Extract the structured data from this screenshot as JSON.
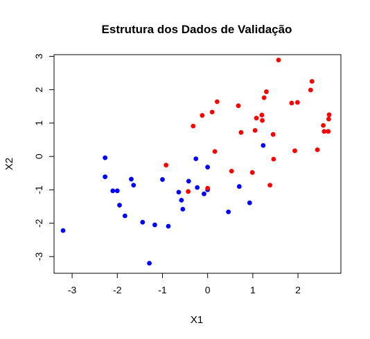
{
  "chart_data": {
    "type": "scatter",
    "title": "Estrutura dos Dados de Validação",
    "xlabel": "X1",
    "ylabel": "X2",
    "xlim": [
      -3.4,
      2.95
    ],
    "ylim": [
      -3.5,
      3.05
    ],
    "xticks": [
      -3,
      -2,
      -1,
      0,
      1,
      2
    ],
    "yticks": [
      -3,
      -2,
      -1,
      0,
      1,
      2,
      3
    ],
    "grid": false,
    "legend": "none",
    "series": [
      {
        "color": "#0000ff",
        "points": [
          [
            -3.2,
            -2.22
          ],
          [
            -2.27,
            -0.04
          ],
          [
            -2.27,
            -0.61
          ],
          [
            -2.1,
            -1.03
          ],
          [
            -2.0,
            -1.03
          ],
          [
            -1.95,
            -1.46
          ],
          [
            -1.83,
            -1.78
          ],
          [
            -1.69,
            -0.68
          ],
          [
            -1.64,
            -0.86
          ],
          [
            -1.44,
            -1.97
          ],
          [
            -1.29,
            -3.2
          ],
          [
            -1.17,
            -2.05
          ],
          [
            -1.0,
            -0.69
          ],
          [
            -0.87,
            -2.09
          ],
          [
            -0.64,
            -1.07
          ],
          [
            -0.58,
            -1.31
          ],
          [
            -0.55,
            -1.58
          ],
          [
            -0.42,
            -0.74
          ],
          [
            -0.26,
            -0.07
          ],
          [
            -0.23,
            -0.93
          ],
          [
            -0.08,
            -1.12
          ],
          [
            0.0,
            -0.32
          ],
          [
            0.0,
            -1.0
          ],
          [
            0.46,
            -1.66
          ],
          [
            0.7,
            -0.9
          ],
          [
            0.93,
            -1.39
          ],
          [
            1.23,
            0.33
          ]
        ]
      },
      {
        "color": "#ff0000",
        "points": [
          [
            -0.92,
            -0.26
          ],
          [
            -0.43,
            -1.05
          ],
          [
            -0.32,
            0.91
          ],
          [
            -0.12,
            1.23
          ],
          [
            0.0,
            -0.95
          ],
          [
            0.1,
            1.33
          ],
          [
            0.16,
            0.15
          ],
          [
            0.21,
            1.64
          ],
          [
            0.53,
            -0.44
          ],
          [
            0.68,
            1.52
          ],
          [
            0.74,
            0.72
          ],
          [
            0.99,
            -0.48
          ],
          [
            1.05,
            0.78
          ],
          [
            1.08,
            1.15
          ],
          [
            1.2,
            1.24
          ],
          [
            1.21,
            1.08
          ],
          [
            1.25,
            1.76
          ],
          [
            1.3,
            1.94
          ],
          [
            1.38,
            -0.86
          ],
          [
            1.45,
            0.66
          ],
          [
            1.46,
            -0.08
          ],
          [
            1.57,
            2.89
          ],
          [
            1.86,
            1.6
          ],
          [
            1.93,
            0.17
          ],
          [
            1.99,
            1.62
          ],
          [
            2.28,
            1.99
          ],
          [
            2.31,
            2.25
          ],
          [
            2.43,
            0.2
          ],
          [
            2.56,
            0.93
          ],
          [
            2.58,
            0.75
          ],
          [
            2.67,
            0.75
          ],
          [
            2.68,
            1.12
          ],
          [
            2.69,
            1.25
          ]
        ]
      }
    ]
  }
}
